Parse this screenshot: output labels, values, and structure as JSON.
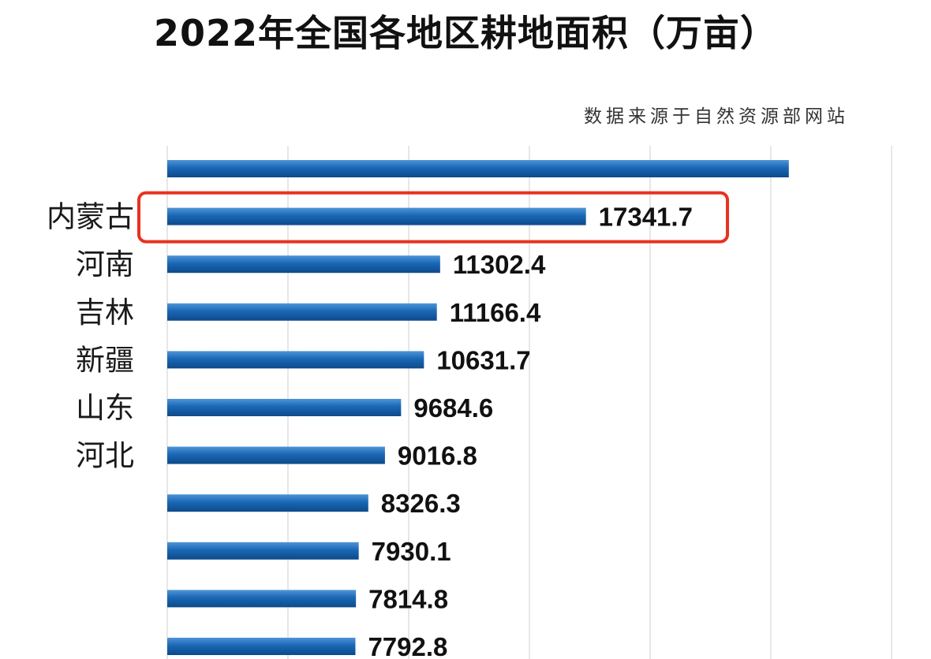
{
  "chart_data": {
    "type": "bar",
    "orientation": "horizontal",
    "title": "2022年全国各地区耕地面积（万亩）",
    "source_note": "数据来源于自然资源部网站",
    "categories": [
      "",
      "内蒙古",
      "河南",
      "吉林",
      "新疆",
      "山东",
      "河北",
      "",
      "",
      "",
      ""
    ],
    "values": [
      25744.7,
      17341.7,
      11302.4,
      11166.4,
      10631.7,
      9684.6,
      9016.8,
      8326.3,
      7930.1,
      7814.8,
      7792.8
    ],
    "value_labels": [
      "",
      "17341.7",
      "11302.4",
      "11166.4",
      "10631.7",
      "9684.6",
      "9016.8",
      "8326.3",
      "7930.1",
      "7814.8",
      "7792.8"
    ],
    "faded_categories": [
      0,
      7,
      8,
      9,
      10
    ],
    "highlighted_index": 1,
    "xlim": [
      0,
      30000
    ],
    "grid": true,
    "bar_color": "#1a67b4",
    "highlight_color": "#e8321f"
  }
}
